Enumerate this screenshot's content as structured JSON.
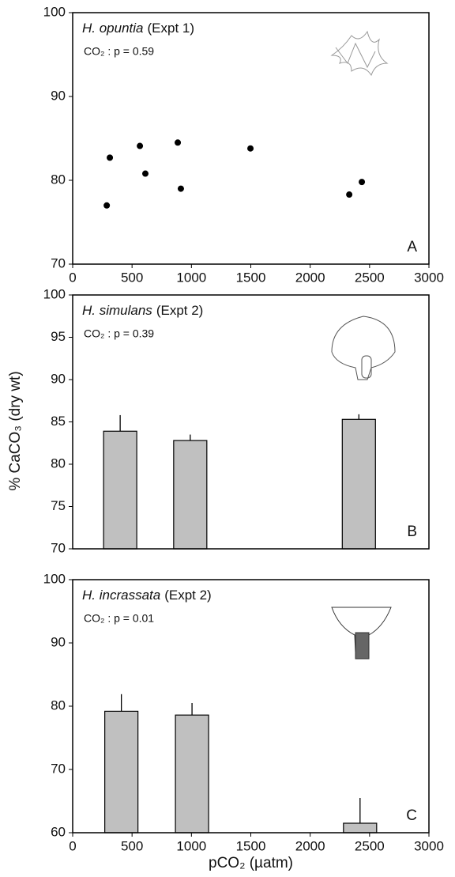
{
  "chart_data": [
    {
      "type": "scatter",
      "species": "H. opuntia",
      "experiment": "(Expt 1)",
      "stat": "CO₂ : p = 0.59",
      "panel": "A",
      "x": [
        313,
        287,
        566,
        612,
        885,
        911,
        1497,
        2329,
        2435
      ],
      "values": [
        82.7,
        77.0,
        84.1,
        80.8,
        84.5,
        79.0,
        83.8,
        78.3,
        79.8
      ],
      "color": "#000000",
      "xlim": [
        0,
        3000
      ],
      "xticks": [
        0,
        500,
        1000,
        1500,
        2000,
        2500,
        3000
      ],
      "ylim": [
        70,
        100
      ],
      "yticks": [
        70,
        80,
        90,
        100
      ]
    },
    {
      "type": "bar",
      "species": "H. simulans",
      "experiment": "(Expt 2)",
      "stat": "CO₂ : p = 0.39",
      "panel": "B",
      "ylabel": "% CaCO₃ (dry wt)",
      "x": [
        400,
        990,
        2410
      ],
      "values": [
        83.9,
        82.8,
        85.3
      ],
      "errors": [
        1.9,
        0.7,
        0.6
      ],
      "color": "#c0c0c0",
      "xlim": [
        0,
        3000
      ],
      "ylim": [
        70,
        100
      ],
      "yticks": [
        70,
        75,
        80,
        85,
        90,
        95,
        100
      ]
    },
    {
      "type": "bar",
      "species": "H. incrassata",
      "experiment": "(Expt 2)",
      "stat": "CO₂ : p = 0.01",
      "panel": "C",
      "xlabel": "pCO₂ (µatm)",
      "x": [
        410,
        1005,
        2420
      ],
      "values": [
        79.2,
        78.6,
        61.5
      ],
      "errors": [
        2.7,
        1.9,
        4.0
      ],
      "color": "#c0c0c0",
      "xlim": [
        0,
        3000
      ],
      "xticks": [
        0,
        500,
        1000,
        1500,
        2000,
        2500,
        3000
      ],
      "ylim": [
        60,
        100
      ],
      "yticks": [
        60,
        70,
        80,
        90,
        100
      ]
    }
  ]
}
